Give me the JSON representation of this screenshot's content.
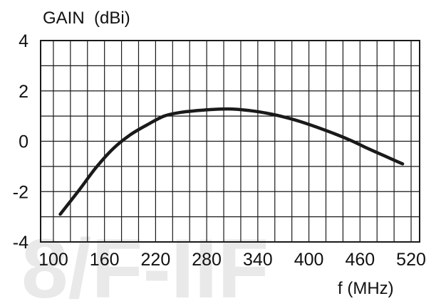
{
  "chart_data": {
    "type": "line",
    "ylabel": "GAIN  (dBi)",
    "xlabel": "f (MHz)",
    "x_ticks": [
      100,
      160,
      220,
      280,
      340,
      400,
      460,
      520
    ],
    "y_ticks": [
      4,
      2,
      0,
      -2,
      -4
    ],
    "xlim": [
      85,
      530
    ],
    "ylim": [
      -4,
      4
    ],
    "grid": true,
    "series": [
      {
        "x": [
          108,
          130,
          150,
          170,
          190,
          210,
          230,
          250,
          270,
          290,
          310,
          330,
          350,
          370,
          390,
          410,
          430,
          450,
          470,
          490,
          510
        ],
        "values": [
          -2.9,
          -1.95,
          -1.05,
          -0.3,
          0.25,
          0.65,
          1.0,
          1.15,
          1.22,
          1.27,
          1.28,
          1.22,
          1.12,
          0.97,
          0.78,
          0.55,
          0.3,
          0.02,
          -0.3,
          -0.6,
          -0.9
        ]
      }
    ]
  },
  "colors": {
    "line": "#1a1a1a",
    "grid": "#1a1a1a",
    "background": "#ffffff",
    "watermark": "#e9e9e9"
  },
  "watermark": {
    "text": "8/F-IIF"
  }
}
